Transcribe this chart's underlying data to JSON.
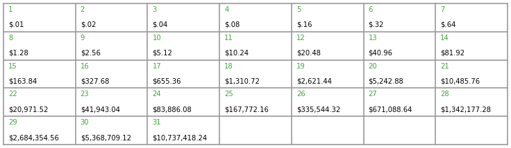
{
  "rows": [
    [
      [
        "1",
        "$.01"
      ],
      [
        "2",
        "$.02"
      ],
      [
        "3",
        "$.04"
      ],
      [
        "4",
        "$.08"
      ],
      [
        "5",
        "$.16"
      ],
      [
        "6",
        "$.32"
      ],
      [
        "7",
        "$.64"
      ]
    ],
    [
      [
        "8",
        "$1.28"
      ],
      [
        "9",
        "$2.56"
      ],
      [
        "10",
        "$5.12"
      ],
      [
        "11",
        "$10.24"
      ],
      [
        "12",
        "$20.48"
      ],
      [
        "13",
        "$40.96"
      ],
      [
        "14",
        "$81.92"
      ]
    ],
    [
      [
        "15",
        "$163.84"
      ],
      [
        "16",
        "$327.68"
      ],
      [
        "17",
        "$655.36"
      ],
      [
        "18",
        "$1,310.72"
      ],
      [
        "19",
        "$2,621.44"
      ],
      [
        "20",
        "$5,242.88"
      ],
      [
        "21",
        "$10,485.76"
      ]
    ],
    [
      [
        "22",
        "$20,971.52"
      ],
      [
        "23",
        "$41,943.04"
      ],
      [
        "24",
        "$83,886.08"
      ],
      [
        "25",
        "$167,772.16"
      ],
      [
        "26",
        "$335,544.32"
      ],
      [
        "27",
        "$671,088.64"
      ],
      [
        "28",
        "$1,342,177.28"
      ]
    ],
    [
      [
        "29",
        "$2,684,354.56"
      ],
      [
        "30",
        "$5,368,709.12"
      ],
      [
        "31",
        "$10,737,418.24"
      ],
      [
        "",
        ""
      ],
      [
        "",
        ""
      ],
      [
        "",
        ""
      ],
      [
        "",
        ""
      ]
    ]
  ],
  "num_rows": 5,
  "num_cols": 7,
  "label_color": "#3aaa35",
  "value_color": "#000000",
  "grid_color": "#999999",
  "bg_color": "#ffffff"
}
